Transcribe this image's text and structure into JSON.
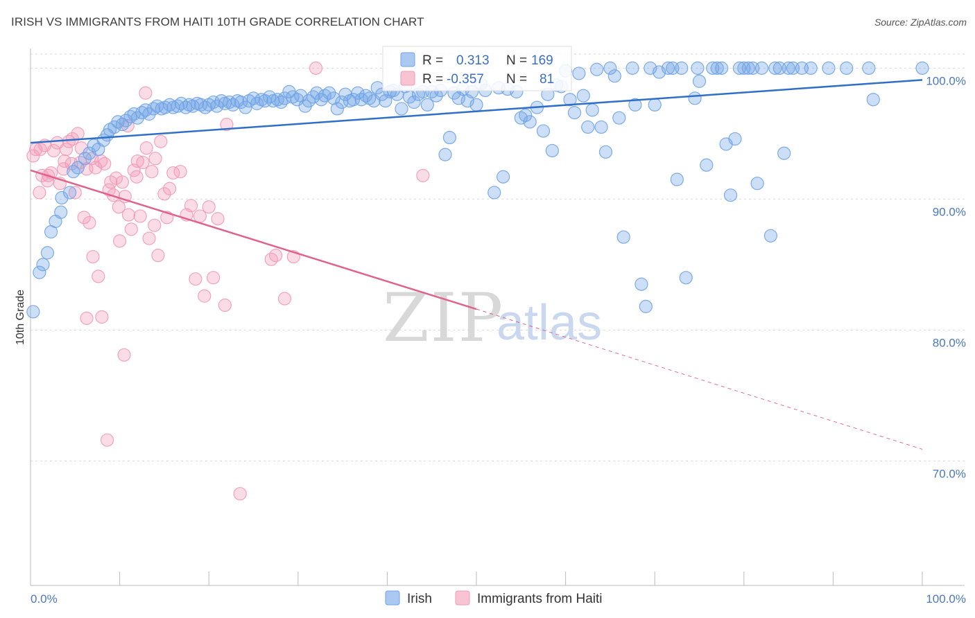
{
  "title": "IRISH VS IMMIGRANTS FROM HAITI 10TH GRADE CORRELATION CHART",
  "source": "Source: ZipAtlas.com",
  "watermark": {
    "zip": "ZIP",
    "atlas": "atlas"
  },
  "legend_top": {
    "r_label": "R =",
    "n_label": "N =",
    "irish": {
      "r": "0.313",
      "n": "169"
    },
    "haiti": {
      "r": "-0.357",
      "n": "81"
    }
  },
  "legend_bottom": {
    "irish": "Irish",
    "haiti": "Immigrants from Haiti"
  },
  "chart_data": {
    "type": "scatter",
    "ylabel": "10th Grade",
    "xlim": [
      0,
      100
    ],
    "ylim": [
      60.5,
      101.5
    ],
    "x_tick_labels": [
      "0.0%",
      "100.0%"
    ],
    "y_ticks": [
      70,
      80,
      90,
      100
    ],
    "y_tick_labels": [
      "70.0%",
      "80.0%",
      "90.0%",
      "100.0%"
    ],
    "colors": {
      "irish": "#6fa3e6",
      "irish_line": "#2f6fc7",
      "haiti": "#f29ab6",
      "haiti_line": "#e0628e",
      "grid": "#d9d9d9"
    },
    "series": [
      {
        "name": "Irish",
        "trend": {
          "x0": 0,
          "y0": 94.3,
          "x1": 100,
          "y1": 99.1
        },
        "points": [
          [
            0.3,
            81.4
          ],
          [
            1.0,
            84.4
          ],
          [
            1.4,
            85.0
          ],
          [
            1.9,
            85.9
          ],
          [
            2.3,
            87.5
          ],
          [
            2.8,
            88.3
          ],
          [
            3.4,
            89.0
          ],
          [
            3.5,
            90.1
          ],
          [
            4.4,
            90.5
          ],
          [
            4.8,
            92.1
          ],
          [
            5.3,
            92.4
          ],
          [
            6.1,
            93.1
          ],
          [
            6.6,
            93.5
          ],
          [
            7.1,
            94.1
          ],
          [
            7.6,
            93.8
          ],
          [
            8.2,
            94.5
          ],
          [
            8.6,
            94.9
          ],
          [
            8.9,
            95.3
          ],
          [
            9.4,
            95.5
          ],
          [
            9.8,
            95.9
          ],
          [
            10.3,
            95.7
          ],
          [
            10.7,
            96.0
          ],
          [
            11.2,
            96.3
          ],
          [
            11.6,
            96.5
          ],
          [
            12.0,
            96.2
          ],
          [
            12.5,
            96.6
          ],
          [
            12.9,
            96.8
          ],
          [
            13.3,
            96.5
          ],
          [
            13.8,
            96.9
          ],
          [
            14.2,
            97.1
          ],
          [
            14.7,
            96.9
          ],
          [
            15.1,
            97.0
          ],
          [
            15.6,
            97.2
          ],
          [
            16.0,
            97.0
          ],
          [
            16.5,
            97.1
          ],
          [
            16.9,
            97.3
          ],
          [
            17.4,
            97.0
          ],
          [
            17.8,
            97.2
          ],
          [
            18.2,
            97.1
          ],
          [
            18.7,
            97.3
          ],
          [
            19.1,
            97.2
          ],
          [
            19.6,
            97.0
          ],
          [
            20.0,
            97.2
          ],
          [
            20.5,
            97.4
          ],
          [
            20.9,
            97.1
          ],
          [
            21.4,
            97.5
          ],
          [
            21.8,
            97.3
          ],
          [
            22.3,
            97.4
          ],
          [
            22.7,
            97.2
          ],
          [
            23.2,
            97.5
          ],
          [
            23.6,
            97.4
          ],
          [
            24.1,
            97.0
          ],
          [
            24.5,
            97.5
          ],
          [
            25.0,
            97.7
          ],
          [
            25.4,
            97.3
          ],
          [
            25.9,
            97.6
          ],
          [
            26.3,
            97.5
          ],
          [
            26.8,
            97.8
          ],
          [
            27.2,
            97.5
          ],
          [
            27.7,
            97.6
          ],
          [
            28.1,
            97.4
          ],
          [
            28.5,
            97.7
          ],
          [
            29.0,
            98.2
          ],
          [
            29.4,
            97.8
          ],
          [
            29.9,
            97.6
          ],
          [
            30.3,
            97.9
          ],
          [
            30.8,
            97.1
          ],
          [
            31.2,
            97.5
          ],
          [
            31.7,
            97.8
          ],
          [
            32.1,
            98.1
          ],
          [
            32.6,
            97.6
          ],
          [
            33.0,
            97.9
          ],
          [
            33.5,
            98.1
          ],
          [
            34.0,
            97.7
          ],
          [
            34.4,
            96.9
          ],
          [
            34.9,
            97.4
          ],
          [
            35.3,
            98.0
          ],
          [
            35.8,
            97.5
          ],
          [
            36.2,
            97.6
          ],
          [
            36.7,
            98.1
          ],
          [
            37.1,
            97.6
          ],
          [
            37.6,
            97.9
          ],
          [
            38.0,
            97.7
          ],
          [
            38.5,
            97.5
          ],
          [
            38.9,
            98.5
          ],
          [
            39.4,
            98.0
          ],
          [
            39.8,
            97.5
          ],
          [
            40.3,
            98.2
          ],
          [
            40.7,
            98.3
          ],
          [
            41.1,
            98.0
          ],
          [
            41.6,
            96.9
          ],
          [
            42.0,
            98.6
          ],
          [
            42.5,
            97.8
          ],
          [
            43.0,
            97.4
          ],
          [
            43.5,
            98.0
          ],
          [
            44.0,
            98.2
          ],
          [
            44.5,
            97.2
          ],
          [
            45.0,
            98.2
          ],
          [
            45.5,
            97.9
          ],
          [
            46.0,
            98.3
          ],
          [
            46.5,
            93.4
          ],
          [
            47.0,
            94.7
          ],
          [
            47.5,
            98.1
          ],
          [
            48.0,
            97.7
          ],
          [
            48.5,
            98.4
          ],
          [
            49.0,
            97.5
          ],
          [
            49.5,
            98.2
          ],
          [
            50.0,
            97.2
          ],
          [
            50.5,
            98.8
          ],
          [
            51.0,
            98.3
          ],
          [
            52.0,
            90.5
          ],
          [
            52.5,
            98.5
          ],
          [
            53.0,
            91.7
          ],
          [
            53.5,
            98.4
          ],
          [
            54.5,
            98.2
          ],
          [
            55.0,
            96.2
          ],
          [
            55.5,
            96.4
          ],
          [
            56.0,
            95.9
          ],
          [
            56.8,
            97.0
          ],
          [
            57.5,
            95.2
          ],
          [
            58.0,
            98.0
          ],
          [
            58.5,
            93.7
          ],
          [
            59.0,
            98.7
          ],
          [
            59.5,
            98.6
          ],
          [
            60.0,
            99.8
          ],
          [
            60.5,
            97.6
          ],
          [
            61.0,
            96.6
          ],
          [
            61.5,
            99.6
          ],
          [
            62.0,
            97.9
          ],
          [
            62.5,
            95.5
          ],
          [
            63.0,
            96.8
          ],
          [
            63.5,
            99.9
          ],
          [
            64.0,
            95.5
          ],
          [
            64.5,
            93.6
          ],
          [
            65.0,
            100.0
          ],
          [
            65.5,
            99.4
          ],
          [
            66.0,
            96.2
          ],
          [
            66.5,
            87.1
          ],
          [
            67.5,
            100.0
          ],
          [
            67.8,
            97.2
          ],
          [
            68.5,
            83.5
          ],
          [
            69.0,
            81.8
          ],
          [
            69.5,
            100.0
          ],
          [
            70.0,
            97.2
          ],
          [
            70.5,
            99.7
          ],
          [
            71.5,
            100.0
          ],
          [
            72.0,
            100.0
          ],
          [
            72.5,
            91.5
          ],
          [
            73.0,
            100.0
          ],
          [
            73.5,
            84.0
          ],
          [
            74.5,
            97.7
          ],
          [
            74.8,
            100.0
          ],
          [
            75.0,
            99.0
          ],
          [
            75.8,
            92.6
          ],
          [
            76.5,
            100.0
          ],
          [
            77.0,
            100.0
          ],
          [
            77.5,
            100.0
          ],
          [
            78.0,
            94.2
          ],
          [
            78.5,
            90.3
          ],
          [
            79.0,
            94.6
          ],
          [
            79.5,
            100.0
          ],
          [
            80.0,
            100.0
          ],
          [
            80.5,
            100.0
          ],
          [
            81.0,
            100.0
          ],
          [
            81.5,
            91.2
          ],
          [
            82.0,
            100.0
          ],
          [
            83.0,
            87.2
          ],
          [
            83.5,
            100.0
          ],
          [
            84.0,
            100.0
          ],
          [
            84.5,
            93.5
          ],
          [
            85.0,
            100.0
          ],
          [
            85.5,
            100.0
          ],
          [
            86.5,
            100.0
          ],
          [
            87.5,
            100.0
          ],
          [
            89.5,
            100.0
          ],
          [
            91.5,
            100.0
          ],
          [
            94.0,
            100.0
          ],
          [
            94.5,
            97.6
          ],
          [
            100.0,
            100.0
          ]
        ]
      },
      {
        "name": "Immigrants from Haiti",
        "trend": {
          "x0": 0,
          "y0": 92.2,
          "x1": 50,
          "y1": 81.6,
          "dash_to_x": 100,
          "dash_to_y": 70.9
        },
        "points": [
          [
            0.3,
            93.3
          ],
          [
            0.6,
            93.8
          ],
          [
            1.0,
            90.5
          ],
          [
            1.3,
            91.8
          ],
          [
            1.6,
            94.1
          ],
          [
            1.9,
            91.4
          ],
          [
            2.3,
            92.0
          ],
          [
            2.6,
            93.7
          ],
          [
            3.0,
            94.3
          ],
          [
            3.3,
            91.2
          ],
          [
            3.7,
            92.3
          ],
          [
            4.0,
            93.8
          ],
          [
            4.3,
            94.4
          ],
          [
            4.6,
            92.7
          ],
          [
            5.0,
            90.5
          ],
          [
            5.3,
            95.0
          ],
          [
            5.6,
            92.8
          ],
          [
            6.0,
            88.6
          ],
          [
            6.3,
            92.3
          ],
          [
            6.6,
            88.2
          ],
          [
            7.0,
            85.6
          ],
          [
            7.3,
            92.4
          ],
          [
            7.6,
            84.1
          ],
          [
            8.0,
            81.0
          ],
          [
            8.3,
            92.7
          ],
          [
            8.6,
            71.6
          ],
          [
            9.0,
            91.3
          ],
          [
            9.3,
            90.3
          ],
          [
            9.6,
            91.6
          ],
          [
            10.0,
            86.8
          ],
          [
            10.3,
            91.3
          ],
          [
            10.6,
            90.2
          ],
          [
            11.0,
            88.8
          ],
          [
            11.3,
            87.7
          ],
          [
            11.6,
            92.2
          ],
          [
            12.0,
            92.9
          ],
          [
            12.3,
            88.7
          ],
          [
            12.6,
            92.8
          ],
          [
            13.0,
            93.9
          ],
          [
            13.3,
            87.0
          ],
          [
            13.6,
            92.1
          ],
          [
            14.0,
            93.1
          ],
          [
            14.3,
            85.7
          ],
          [
            14.6,
            94.4
          ],
          [
            15.0,
            90.4
          ],
          [
            15.3,
            88.6
          ],
          [
            15.6,
            90.8
          ],
          [
            16.0,
            92.0
          ],
          [
            16.8,
            92.1
          ],
          [
            17.5,
            88.8
          ],
          [
            18.0,
            89.5
          ],
          [
            18.5,
            83.9
          ],
          [
            19.0,
            88.7
          ],
          [
            19.5,
            82.6
          ],
          [
            20.0,
            89.4
          ],
          [
            20.5,
            84.0
          ],
          [
            21.0,
            88.5
          ],
          [
            21.8,
            81.9
          ],
          [
            22.0,
            95.7
          ],
          [
            23.5,
            67.5
          ],
          [
            27.0,
            85.4
          ],
          [
            27.5,
            85.7
          ],
          [
            28.5,
            82.4
          ],
          [
            29.5,
            85.6
          ],
          [
            32.0,
            100.0
          ],
          [
            44.0,
            91.8
          ],
          [
            1.1,
            93.8
          ],
          [
            2.0,
            91.8
          ],
          [
            3.8,
            92.9
          ],
          [
            4.7,
            94.6
          ],
          [
            5.7,
            93.9
          ],
          [
            6.9,
            93.1
          ],
          [
            7.9,
            92.9
          ],
          [
            8.8,
            90.7
          ],
          [
            9.9,
            89.4
          ],
          [
            10.9,
            95.6
          ],
          [
            11.9,
            91.7
          ],
          [
            12.9,
            98.1
          ],
          [
            13.9,
            88.0
          ],
          [
            6.3,
            80.9
          ],
          [
            10.5,
            78.1
          ]
        ]
      }
    ]
  }
}
